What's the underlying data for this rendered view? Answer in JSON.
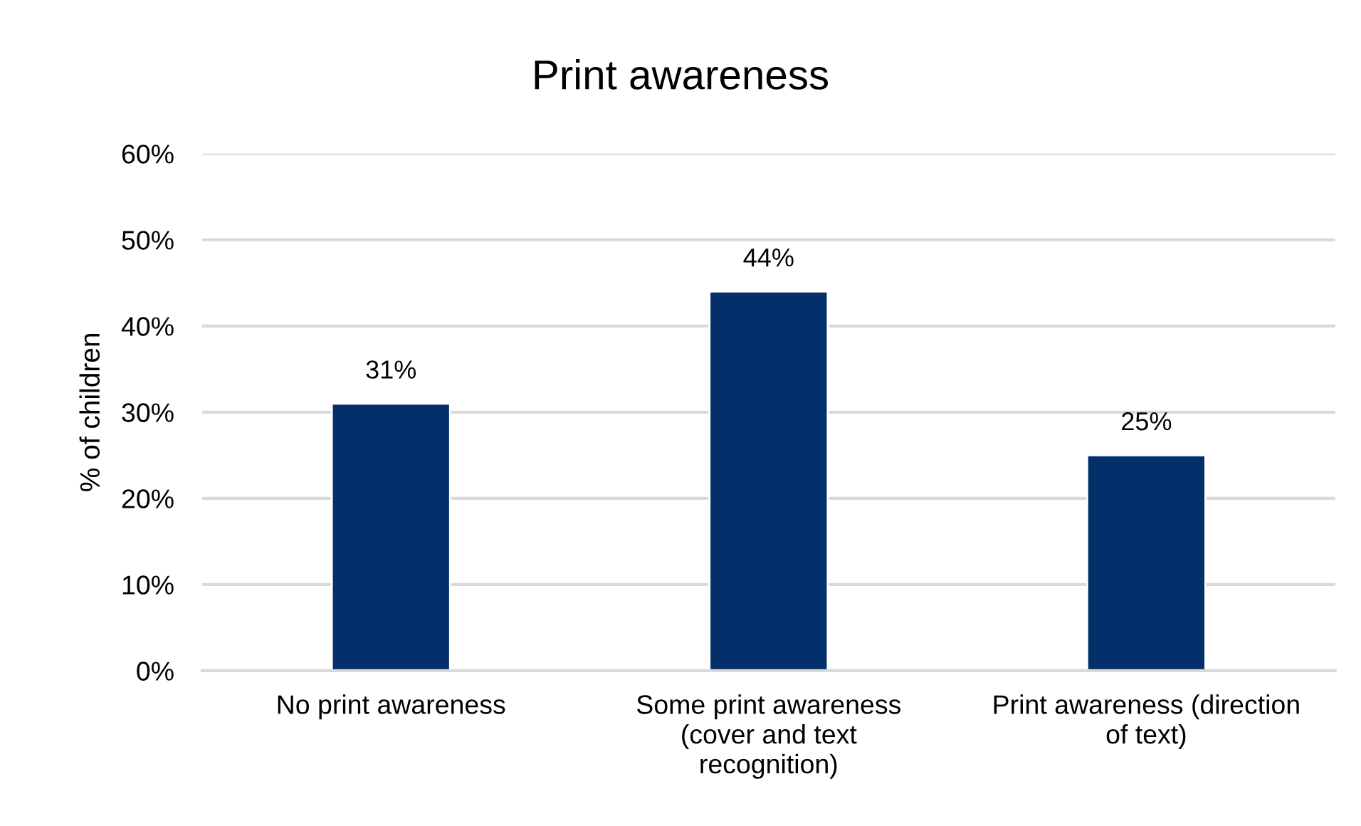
{
  "chart_data": {
    "type": "bar",
    "title": "Print awareness",
    "ylabel": "% of children",
    "categories": [
      "No print awareness",
      "Some print awareness\n(cover and text\nrecognition)",
      "Print awareness (direction\nof text)"
    ],
    "values": [
      31,
      44,
      25
    ],
    "color": "#03306b",
    "value_labels": [
      "31%",
      "44%",
      "25%"
    ],
    "ylim": [
      0,
      60
    ],
    "yticks": [
      {
        "value": 0,
        "label": "0%"
      },
      {
        "value": 10,
        "label": "10%"
      },
      {
        "value": 20,
        "label": "20%"
      },
      {
        "value": 30,
        "label": "30%"
      },
      {
        "value": 40,
        "label": "40%"
      },
      {
        "value": 50,
        "label": "50%"
      },
      {
        "value": 60,
        "label": "60%"
      }
    ],
    "grid": "y",
    "legend": false
  }
}
